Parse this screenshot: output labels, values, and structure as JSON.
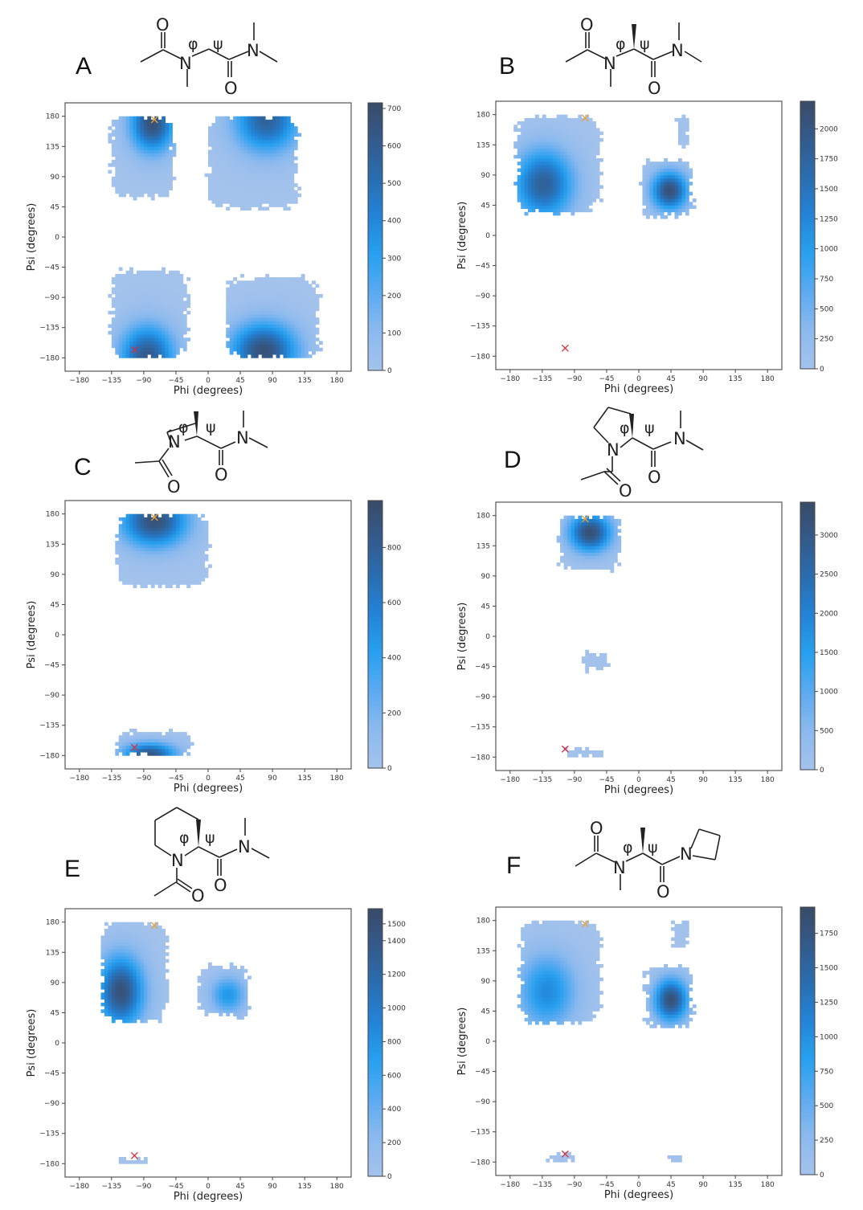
{
  "figure": {
    "axis_xlabel": "Phi (degrees)",
    "axis_ylabel": "Psi (degrees)",
    "tick_labels": [
      "−180",
      "−135",
      "−90",
      "−45",
      "0",
      "45",
      "90",
      "135",
      "180"
    ],
    "colormap": [
      "#a3c2ec",
      "#8bb9ee",
      "#5aaaf0",
      "#27a0ef",
      "#2383d6",
      "#2a6db0",
      "#345a8a",
      "#3a4a66"
    ],
    "marker_colors": {
      "reference_x_orange": "#e8a33a",
      "reference_x_red": "#e0283a"
    },
    "phi_symbol": "φ",
    "psi_symbol": "ψ",
    "atom_O": "O",
    "atom_N": "N"
  },
  "chart_data": [
    {
      "panel": "A",
      "type": "heatmap",
      "molecule": "N-methyl glycine (sarcosine) diamide",
      "xlabel": "Phi (degrees)",
      "ylabel": "Psi (degrees)",
      "xlim": [
        -200,
        200
      ],
      "ylim": [
        -200,
        200
      ],
      "xticks": [
        -180,
        -135,
        -90,
        -45,
        0,
        45,
        90,
        135,
        180
      ],
      "yticks": [
        -180,
        -135,
        -90,
        -45,
        0,
        45,
        90,
        135,
        180
      ],
      "colorbar": {
        "min": 0,
        "max": 715,
        "ticks": [
          0,
          100,
          200,
          300,
          400,
          500,
          600,
          700
        ]
      },
      "markers": [
        {
          "color": "orange",
          "phi": -75,
          "psi": 175
        },
        {
          "color": "red",
          "phi": -103,
          "psi": -168
        }
      ],
      "regions": [
        {
          "phi_range": [
            -135,
            -50
          ],
          "psi_range": [
            60,
            180
          ],
          "peak": {
            "phi": -78,
            "psi": 170,
            "value": 700
          }
        },
        {
          "phi_range": [
            0,
            125
          ],
          "psi_range": [
            45,
            180
          ],
          "peak": {
            "phi": 82,
            "psi": 175,
            "value": 600
          }
        },
        {
          "phi_range": [
            -135,
            -30
          ],
          "psi_range": [
            -180,
            -50
          ],
          "peak": {
            "phi": -85,
            "psi": -178,
            "value": 650
          }
        },
        {
          "phi_range": [
            25,
            155
          ],
          "psi_range": [
            -180,
            -60
          ],
          "peak": {
            "phi": 78,
            "psi": -170,
            "value": 700
          }
        }
      ]
    },
    {
      "panel": "B",
      "type": "heatmap",
      "molecule": "N-methyl alanine diamide",
      "xlabel": "Phi (degrees)",
      "ylabel": "Psi (degrees)",
      "xlim": [
        -200,
        200
      ],
      "ylim": [
        -200,
        200
      ],
      "xticks": [
        -180,
        -135,
        -90,
        -45,
        0,
        45,
        90,
        135,
        180
      ],
      "yticks": [
        -180,
        -135,
        -90,
        -45,
        0,
        45,
        90,
        135,
        180
      ],
      "colorbar": {
        "min": 0,
        "max": 2230,
        "ticks": [
          0,
          250,
          500,
          750,
          1000,
          1250,
          1500,
          1750,
          2000
        ]
      },
      "markers": [
        {
          "color": "orange",
          "phi": -75,
          "psi": 175
        },
        {
          "color": "red",
          "phi": -103,
          "psi": -168
        }
      ],
      "regions": [
        {
          "phi_range": [
            -170,
            -55
          ],
          "psi_range": [
            35,
            178
          ],
          "peak": {
            "phi": -133,
            "psi": 77,
            "value": 1900
          }
        },
        {
          "phi_range": [
            5,
            75
          ],
          "psi_range": [
            30,
            110
          ],
          "peak": {
            "phi": 43,
            "psi": 67,
            "value": 2200
          }
        },
        {
          "phi_range": [
            55,
            70
          ],
          "psi_range": [
            130,
            175
          ],
          "peak": {
            "phi": 62,
            "psi": 155,
            "value": 20
          }
        }
      ]
    },
    {
      "panel": "C",
      "type": "heatmap",
      "molecule": "N-acetyl azetidine-2-carboxylic acid dimethylamide",
      "xlabel": "Phi (degrees)",
      "ylabel": "Psi (degrees)",
      "xlim": [
        -200,
        200
      ],
      "ylim": [
        -200,
        200
      ],
      "xticks": [
        -180,
        -135,
        -90,
        -45,
        0,
        45,
        90,
        135,
        180
      ],
      "yticks": [
        -180,
        -135,
        -90,
        -45,
        0,
        45,
        90,
        135,
        180
      ],
      "colorbar": {
        "min": 0,
        "max": 970,
        "ticks": [
          0,
          200,
          400,
          600,
          800
        ]
      },
      "markers": [
        {
          "color": "orange",
          "phi": -75,
          "psi": 175
        },
        {
          "color": "red",
          "phi": -103,
          "psi": -168
        }
      ],
      "regions": [
        {
          "phi_range": [
            -128,
            0
          ],
          "psi_range": [
            72,
            180
          ],
          "peak": {
            "phi": -75,
            "psi": 170,
            "value": 950
          }
        },
        {
          "phi_range": [
            -128,
            -25
          ],
          "psi_range": [
            -180,
            -145
          ],
          "peak": {
            "phi": -82,
            "psi": -178,
            "value": 900
          }
        }
      ]
    },
    {
      "panel": "D",
      "type": "heatmap",
      "molecule": "N-acetyl proline dimethylamide",
      "xlabel": "Phi (degrees)",
      "ylabel": "Psi (degrees)",
      "xlim": [
        -200,
        200
      ],
      "ylim": [
        -200,
        200
      ],
      "xticks": [
        -180,
        -135,
        -90,
        -45,
        0,
        45,
        90,
        135,
        180
      ],
      "yticks": [
        -180,
        -135,
        -90,
        -45,
        0,
        45,
        90,
        135,
        180
      ],
      "colorbar": {
        "min": 0,
        "max": 3420,
        "ticks": [
          0,
          500,
          1000,
          1500,
          2000,
          2500,
          3000
        ]
      },
      "markers": [
        {
          "color": "orange",
          "phi": -75,
          "psi": 175
        },
        {
          "color": "red",
          "phi": -103,
          "psi": -168
        }
      ],
      "regions": [
        {
          "phi_range": [
            -110,
            -28
          ],
          "psi_range": [
            100,
            180
          ],
          "peak": {
            "phi": -68,
            "psi": 155,
            "value": 3400
          }
        },
        {
          "phi_range": [
            -75,
            -45
          ],
          "psi_range": [
            -50,
            -25
          ],
          "peak": {
            "phi": -60,
            "psi": -38,
            "value": 20
          }
        },
        {
          "phi_range": [
            -100,
            -50
          ],
          "psi_range": [
            -180,
            -168
          ],
          "peak": {
            "phi": -75,
            "psi": -176,
            "value": 20
          }
        }
      ]
    },
    {
      "panel": "E",
      "type": "heatmap",
      "molecule": "N-acetyl pipecolic acid dimethylamide",
      "xlabel": "Phi (degrees)",
      "ylabel": "Psi (degrees)",
      "xlim": [
        -200,
        200
      ],
      "ylim": [
        -200,
        200
      ],
      "xticks": [
        -180,
        -135,
        -90,
        -45,
        0,
        45,
        90,
        135,
        180
      ],
      "yticks": [
        -180,
        -135,
        -90,
        -45,
        0,
        45,
        90,
        135,
        180
      ],
      "colorbar": {
        "min": 0,
        "max": 1590,
        "ticks": [
          0,
          200,
          400,
          600,
          800,
          1000,
          1200,
          1400,
          1500
        ]
      },
      "markers": [
        {
          "color": "orange",
          "phi": -75,
          "psi": 175
        },
        {
          "color": "red",
          "phi": -103,
          "psi": -168
        }
      ],
      "regions": [
        {
          "phi_range": [
            -148,
            -58
          ],
          "psi_range": [
            32,
            180
          ],
          "peak": {
            "phi": -122,
            "psi": 77,
            "value": 1550
          }
        },
        {
          "phi_range": [
            -12,
            55
          ],
          "psi_range": [
            40,
            115
          ],
          "peak": {
            "phi": 28,
            "psi": 72,
            "value": 800
          }
        },
        {
          "phi_range": [
            -125,
            -85
          ],
          "psi_range": [
            -180,
            -174
          ],
          "peak": {
            "phi": -105,
            "psi": -177,
            "value": 20
          }
        }
      ]
    },
    {
      "panel": "F",
      "type": "heatmap",
      "molecule": "N-methyl alanine azetidine amide",
      "xlabel": "Phi (degrees)",
      "ylabel": "Psi (degrees)",
      "xlim": [
        -200,
        200
      ],
      "ylim": [
        -200,
        200
      ],
      "xticks": [
        -180,
        -135,
        -90,
        -45,
        0,
        45,
        90,
        135,
        180
      ],
      "yticks": [
        -180,
        -135,
        -90,
        -45,
        0,
        45,
        90,
        135,
        180
      ],
      "colorbar": {
        "min": 0,
        "max": 1940,
        "ticks": [
          0,
          250,
          500,
          750,
          1000,
          1250,
          1500,
          1750
        ]
      },
      "markers": [
        {
          "color": "orange",
          "phi": -75,
          "psi": 175
        },
        {
          "color": "red",
          "phi": -103,
          "psi": -168
        }
      ],
      "regions": [
        {
          "phi_range": [
            -165,
            -55
          ],
          "psi_range": [
            28,
            180
          ],
          "peak": {
            "phi": -128,
            "psi": 75,
            "value": 1100
          }
        },
        {
          "phi_range": [
            10,
            75
          ],
          "psi_range": [
            22,
            110
          ],
          "peak": {
            "phi": 45,
            "psi": 62,
            "value": 1900
          }
        },
        {
          "phi_range": [
            48,
            70
          ],
          "psi_range": [
            140,
            180
          ],
          "peak": {
            "phi": 58,
            "psi": 165,
            "value": 20
          }
        },
        {
          "phi_range": [
            -125,
            -90
          ],
          "psi_range": [
            -180,
            -168
          ],
          "peak": {
            "phi": -108,
            "psi": -176,
            "value": 20
          }
        },
        {
          "phi_range": [
            42,
            58
          ],
          "psi_range": [
            -180,
            -168
          ],
          "peak": {
            "phi": 50,
            "psi": -176,
            "value": 20
          }
        }
      ]
    }
  ],
  "panels": [
    {
      "letter": "A"
    },
    {
      "letter": "B"
    },
    {
      "letter": "C"
    },
    {
      "letter": "D"
    },
    {
      "letter": "E"
    },
    {
      "letter": "F"
    }
  ]
}
